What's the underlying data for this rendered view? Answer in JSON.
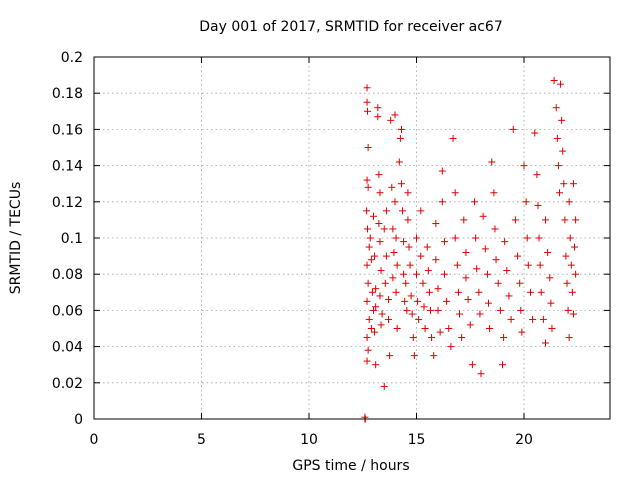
{
  "chart_data": {
    "type": "scatter",
    "title": "Day 001 of 2017, SRMTID for receiver ac67",
    "xlabel": "GPS time / hours",
    "ylabel": "SRMTID / TECUs",
    "xlim": [
      0,
      24
    ],
    "ylim": [
      0,
      0.2
    ],
    "xticks": [
      0,
      5,
      10,
      15,
      20
    ],
    "xtick_labels": [
      "0",
      "5",
      "10",
      "15",
      "20"
    ],
    "yticks": [
      0,
      0.02,
      0.04,
      0.06,
      0.08,
      0.1,
      0.12,
      0.14,
      0.16,
      0.18,
      0.2
    ],
    "ytick_labels": [
      "0",
      "0.02",
      "0.04",
      "0.06",
      "0.08",
      "0.1",
      "0.12",
      "0.14",
      "0.16",
      "0.18",
      "0.2"
    ],
    "grid": true,
    "marker": "+",
    "color": "#e00000",
    "series": [
      {
        "name": "SRMTID",
        "points": [
          [
            12.6,
            0.0
          ],
          [
            12.6,
            0.001
          ],
          [
            12.62,
            0.0
          ],
          [
            12.7,
            0.183
          ],
          [
            12.7,
            0.175
          ],
          [
            12.72,
            0.17
          ],
          [
            12.75,
            0.15
          ],
          [
            12.7,
            0.132
          ],
          [
            12.75,
            0.128
          ],
          [
            12.68,
            0.115
          ],
          [
            12.72,
            0.105
          ],
          [
            12.8,
            0.095
          ],
          [
            12.7,
            0.085
          ],
          [
            12.75,
            0.075
          ],
          [
            12.7,
            0.065
          ],
          [
            12.8,
            0.055
          ],
          [
            12.7,
            0.045
          ],
          [
            12.75,
            0.038
          ],
          [
            12.7,
            0.032
          ],
          [
            12.85,
            0.1
          ],
          [
            12.9,
            0.088
          ],
          [
            12.95,
            0.07
          ],
          [
            13.0,
            0.06
          ],
          [
            12.9,
            0.05
          ],
          [
            13.0,
            0.112
          ],
          [
            13.05,
            0.09
          ],
          [
            13.1,
            0.072
          ],
          [
            13.1,
            0.062
          ],
          [
            13.05,
            0.048
          ],
          [
            13.1,
            0.03
          ],
          [
            13.2,
            0.172
          ],
          [
            13.2,
            0.167
          ],
          [
            13.25,
            0.135
          ],
          [
            13.3,
            0.125
          ],
          [
            13.25,
            0.108
          ],
          [
            13.3,
            0.098
          ],
          [
            13.35,
            0.082
          ],
          [
            13.3,
            0.068
          ],
          [
            13.4,
            0.058
          ],
          [
            13.35,
            0.052
          ],
          [
            13.5,
            0.018
          ],
          [
            13.5,
            0.105
          ],
          [
            13.6,
            0.115
          ],
          [
            13.6,
            0.09
          ],
          [
            13.55,
            0.075
          ],
          [
            13.7,
            0.066
          ],
          [
            13.7,
            0.055
          ],
          [
            13.75,
            0.035
          ],
          [
            13.8,
            0.165
          ],
          [
            13.85,
            0.128
          ],
          [
            13.9,
            0.105
          ],
          [
            13.95,
            0.092
          ],
          [
            13.9,
            0.078
          ],
          [
            14.0,
            0.168
          ],
          [
            14.0,
            0.12
          ],
          [
            14.05,
            0.1
          ],
          [
            14.1,
            0.085
          ],
          [
            14.05,
            0.07
          ],
          [
            14.1,
            0.05
          ],
          [
            14.2,
            0.142
          ],
          [
            14.25,
            0.155
          ],
          [
            14.3,
            0.16
          ],
          [
            14.3,
            0.13
          ],
          [
            14.35,
            0.115
          ],
          [
            14.4,
            0.098
          ],
          [
            14.4,
            0.08
          ],
          [
            14.45,
            0.065
          ],
          [
            14.5,
            0.075
          ],
          [
            14.55,
            0.06
          ],
          [
            14.6,
            0.125
          ],
          [
            14.6,
            0.11
          ],
          [
            14.65,
            0.095
          ],
          [
            14.7,
            0.085
          ],
          [
            14.75,
            0.068
          ],
          [
            14.8,
            0.058
          ],
          [
            14.85,
            0.045
          ],
          [
            14.9,
            0.035
          ],
          [
            15.0,
            0.1
          ],
          [
            15.0,
            0.08
          ],
          [
            15.05,
            0.065
          ],
          [
            15.1,
            0.055
          ],
          [
            15.2,
            0.115
          ],
          [
            15.2,
            0.09
          ],
          [
            15.3,
            0.075
          ],
          [
            15.35,
            0.062
          ],
          [
            15.4,
            0.05
          ],
          [
            15.5,
            0.095
          ],
          [
            15.55,
            0.082
          ],
          [
            15.6,
            0.07
          ],
          [
            15.65,
            0.06
          ],
          [
            15.7,
            0.045
          ],
          [
            15.8,
            0.035
          ],
          [
            15.9,
            0.108
          ],
          [
            15.9,
            0.088
          ],
          [
            16.0,
            0.072
          ],
          [
            16.0,
            0.06
          ],
          [
            16.1,
            0.048
          ],
          [
            16.2,
            0.137
          ],
          [
            16.2,
            0.12
          ],
          [
            16.3,
            0.098
          ],
          [
            16.3,
            0.08
          ],
          [
            16.4,
            0.065
          ],
          [
            16.5,
            0.05
          ],
          [
            16.6,
            0.04
          ],
          [
            16.7,
            0.155
          ],
          [
            16.8,
            0.125
          ],
          [
            16.8,
            0.1
          ],
          [
            16.9,
            0.085
          ],
          [
            16.95,
            0.07
          ],
          [
            17.0,
            0.058
          ],
          [
            17.1,
            0.045
          ],
          [
            17.2,
            0.11
          ],
          [
            17.3,
            0.092
          ],
          [
            17.3,
            0.078
          ],
          [
            17.4,
            0.066
          ],
          [
            17.5,
            0.052
          ],
          [
            17.6,
            0.03
          ],
          [
            17.7,
            0.12
          ],
          [
            17.75,
            0.1
          ],
          [
            17.8,
            0.083
          ],
          [
            17.9,
            0.07
          ],
          [
            17.95,
            0.058
          ],
          [
            18.0,
            0.025
          ],
          [
            18.1,
            0.112
          ],
          [
            18.2,
            0.094
          ],
          [
            18.3,
            0.08
          ],
          [
            18.35,
            0.064
          ],
          [
            18.4,
            0.05
          ],
          [
            18.5,
            0.142
          ],
          [
            18.6,
            0.125
          ],
          [
            18.65,
            0.105
          ],
          [
            18.7,
            0.088
          ],
          [
            18.8,
            0.075
          ],
          [
            18.9,
            0.06
          ],
          [
            19.0,
            0.03
          ],
          [
            19.05,
            0.045
          ],
          [
            19.1,
            0.098
          ],
          [
            19.2,
            0.082
          ],
          [
            19.3,
            0.068
          ],
          [
            19.4,
            0.055
          ],
          [
            19.5,
            0.16
          ],
          [
            19.6,
            0.11
          ],
          [
            19.7,
            0.09
          ],
          [
            19.8,
            0.075
          ],
          [
            19.85,
            0.06
          ],
          [
            19.9,
            0.048
          ],
          [
            20.0,
            0.14
          ],
          [
            20.1,
            0.12
          ],
          [
            20.15,
            0.1
          ],
          [
            20.2,
            0.085
          ],
          [
            20.3,
            0.07
          ],
          [
            20.4,
            0.055
          ],
          [
            20.5,
            0.158
          ],
          [
            20.6,
            0.135
          ],
          [
            20.65,
            0.118
          ],
          [
            20.7,
            0.1
          ],
          [
            20.75,
            0.085
          ],
          [
            20.8,
            0.07
          ],
          [
            20.9,
            0.055
          ],
          [
            21.0,
            0.11
          ],
          [
            21.0,
            0.042
          ],
          [
            21.1,
            0.092
          ],
          [
            21.2,
            0.078
          ],
          [
            21.25,
            0.064
          ],
          [
            21.3,
            0.05
          ],
          [
            21.4,
            0.187
          ],
          [
            21.5,
            0.172
          ],
          [
            21.55,
            0.155
          ],
          [
            21.6,
            0.14
          ],
          [
            21.65,
            0.125
          ],
          [
            21.7,
            0.185
          ],
          [
            21.75,
            0.165
          ],
          [
            21.8,
            0.148
          ],
          [
            21.85,
            0.13
          ],
          [
            21.9,
            0.11
          ],
          [
            21.95,
            0.09
          ],
          [
            22.0,
            0.075
          ],
          [
            22.05,
            0.06
          ],
          [
            22.1,
            0.045
          ],
          [
            22.1,
            0.12
          ],
          [
            22.15,
            0.1
          ],
          [
            22.2,
            0.085
          ],
          [
            22.25,
            0.07
          ],
          [
            22.3,
            0.13
          ],
          [
            22.3,
            0.058
          ],
          [
            22.35,
            0.095
          ],
          [
            22.4,
            0.08
          ],
          [
            22.4,
            0.11
          ]
        ]
      }
    ]
  }
}
